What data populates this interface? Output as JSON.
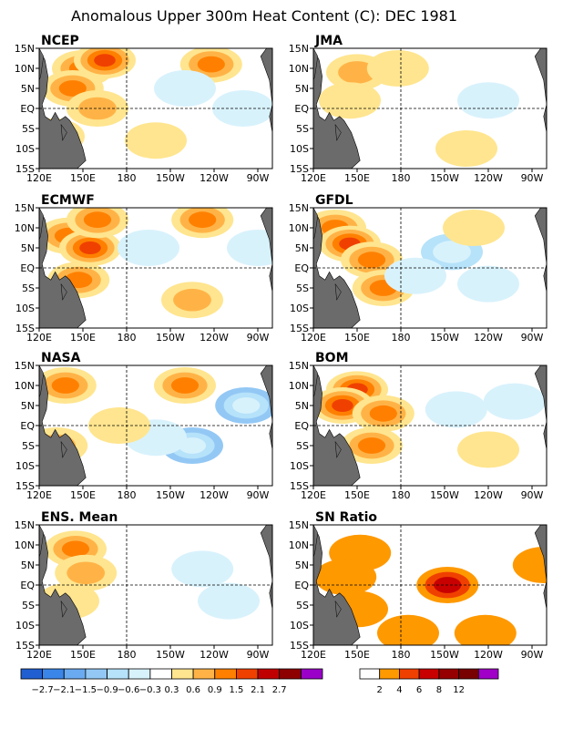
{
  "title": "Anomalous Upper 300m Heat Content (C): DEC 1981",
  "axes": {
    "x_ticks": [
      "120E",
      "150E",
      "180",
      "150W",
      "120W",
      "90W"
    ],
    "y_ticks": [
      "15N",
      "10N",
      "5N",
      "EQ",
      "5S",
      "10S",
      "15S"
    ]
  },
  "chart_data": [
    {
      "type": "heatmap",
      "title": "NCEP",
      "xlim": [
        "120E",
        "80W"
      ],
      "ylim": [
        "15S",
        "15N"
      ],
      "blobs": [
        {
          "lon": 150,
          "lat": 10,
          "value": 1.2
        },
        {
          "lon": 165,
          "lat": 12,
          "value": 1.6
        },
        {
          "lon": 143,
          "lat": 5,
          "value": 1.0
        },
        {
          "lon": 130,
          "lat": -7,
          "value": 1.1
        },
        {
          "lon": 160,
          "lat": 0,
          "value": 0.8
        },
        {
          "lon": 238,
          "lat": 11,
          "value": 1.2
        },
        {
          "lon": 220,
          "lat": 5,
          "value": -0.3
        },
        {
          "lon": 260,
          "lat": 0,
          "value": -0.3
        },
        {
          "lon": 200,
          "lat": -8,
          "value": 0.4
        }
      ]
    },
    {
      "type": "heatmap",
      "title": "JMA",
      "xlim": [
        "120E",
        "80W"
      ],
      "ylim": [
        "15S",
        "15N"
      ],
      "blobs": [
        {
          "lon": 150,
          "lat": 9,
          "value": 0.6
        },
        {
          "lon": 145,
          "lat": 2,
          "value": 0.4
        },
        {
          "lon": 178,
          "lat": 10,
          "value": 0.3
        },
        {
          "lon": 240,
          "lat": 2,
          "value": -0.3
        },
        {
          "lon": 225,
          "lat": -10,
          "value": 0.4
        }
      ]
    },
    {
      "type": "heatmap",
      "title": "ECMWF",
      "xlim": [
        "120E",
        "80W"
      ],
      "ylim": [
        "15S",
        "15N"
      ],
      "blobs": [
        {
          "lon": 140,
          "lat": 8,
          "value": 1.1
        },
        {
          "lon": 155,
          "lat": 5,
          "value": 1.6
        },
        {
          "lon": 160,
          "lat": 12,
          "value": 1.3
        },
        {
          "lon": 147,
          "lat": -3,
          "value": 0.9
        },
        {
          "lon": 232,
          "lat": 12,
          "value": 0.9
        },
        {
          "lon": 225,
          "lat": -8,
          "value": 0.6
        },
        {
          "lon": 195,
          "lat": 5,
          "value": -0.3
        },
        {
          "lon": 270,
          "lat": 5,
          "value": -0.3
        }
      ]
    },
    {
      "type": "heatmap",
      "title": "GFDL",
      "xlim": [
        "120E",
        "80W"
      ],
      "ylim": [
        "15S",
        "15N"
      ],
      "blobs": [
        {
          "lon": 135,
          "lat": 10,
          "value": 1.0
        },
        {
          "lon": 145,
          "lat": 6,
          "value": 1.7
        },
        {
          "lon": 160,
          "lat": 2,
          "value": 1.2
        },
        {
          "lon": 168,
          "lat": -5,
          "value": 0.9
        },
        {
          "lon": 215,
          "lat": 4,
          "value": -0.6
        },
        {
          "lon": 190,
          "lat": -2,
          "value": -0.3
        },
        {
          "lon": 240,
          "lat": -4,
          "value": -0.5
        },
        {
          "lon": 230,
          "lat": 10,
          "value": 0.4
        }
      ]
    },
    {
      "type": "heatmap",
      "title": "NASA",
      "xlim": [
        "120E",
        "80W"
      ],
      "ylim": [
        "15S",
        "15N"
      ],
      "blobs": [
        {
          "lon": 138,
          "lat": 10,
          "value": 1.3
        },
        {
          "lon": 132,
          "lat": -5,
          "value": 0.6
        },
        {
          "lon": 220,
          "lat": 10,
          "value": 0.9
        },
        {
          "lon": 262,
          "lat": 5,
          "value": -1.0
        },
        {
          "lon": 225,
          "lat": -5,
          "value": -1.2
        },
        {
          "lon": 200,
          "lat": -3,
          "value": -0.4
        },
        {
          "lon": 175,
          "lat": 0,
          "value": 0.4
        }
      ]
    },
    {
      "type": "heatmap",
      "title": "BOM",
      "xlim": [
        "120E",
        "80W"
      ],
      "ylim": [
        "15S",
        "15N"
      ],
      "blobs": [
        {
          "lon": 150,
          "lat": 9,
          "value": 2.0
        },
        {
          "lon": 140,
          "lat": 5,
          "value": 1.5
        },
        {
          "lon": 168,
          "lat": 3,
          "value": 1.1
        },
        {
          "lon": 160,
          "lat": -5,
          "value": 1.0
        },
        {
          "lon": 218,
          "lat": 4,
          "value": -0.5
        },
        {
          "lon": 258,
          "lat": 6,
          "value": -0.5
        },
        {
          "lon": 240,
          "lat": -6,
          "value": 0.5
        }
      ]
    },
    {
      "type": "heatmap",
      "title": "ENS. Mean",
      "xlim": [
        "120E",
        "80W"
      ],
      "ylim": [
        "15S",
        "15N"
      ],
      "blobs": [
        {
          "lon": 145,
          "lat": 9,
          "value": 1.1
        },
        {
          "lon": 152,
          "lat": 3,
          "value": 0.8
        },
        {
          "lon": 140,
          "lat": -4,
          "value": 0.5
        },
        {
          "lon": 232,
          "lat": 4,
          "value": -0.3
        },
        {
          "lon": 250,
          "lat": -4,
          "value": -0.3
        }
      ]
    },
    {
      "type": "heatmap",
      "title": "SN Ratio",
      "xlim": [
        "120E",
        "80W"
      ],
      "ylim": [
        "15S",
        "15N"
      ],
      "blobs": [
        {
          "lon": 152,
          "lat": 8,
          "value": 3.2
        },
        {
          "lon": 142,
          "lat": 2,
          "value": 2.8
        },
        {
          "lon": 150,
          "lat": -6,
          "value": 2.6
        },
        {
          "lon": 212,
          "lat": 0,
          "value": 7.0
        },
        {
          "lon": 185,
          "lat": -12,
          "value": 3.5
        },
        {
          "lon": 238,
          "lat": -12,
          "value": 3.0
        },
        {
          "lon": 278,
          "lat": 5,
          "value": 2.5
        }
      ]
    }
  ],
  "anomaly_scale": {
    "labels": [
      "-2.7",
      "-2.1",
      "-1.5",
      "-0.9",
      "-0.6",
      "-0.3",
      "0.3",
      "0.6",
      "0.9",
      "1.5",
      "2.1",
      "2.7"
    ],
    "colors": [
      "#1f5fd1",
      "#3a86e8",
      "#6aaaf0",
      "#93c8f5",
      "#b6e2fa",
      "#d8f2fc",
      "#ffffff",
      "#ffe58f",
      "#ffb347",
      "#ff8000",
      "#f04000",
      "#c00000",
      "#8e0000",
      "#9a00c8"
    ]
  },
  "sn_scale": {
    "labels": [
      "2",
      "4",
      "6",
      "8",
      "12"
    ],
    "colors": [
      "#ffffff",
      "#ff9900",
      "#f04000",
      "#c80000",
      "#960000",
      "#780000",
      "#a000c8"
    ]
  }
}
